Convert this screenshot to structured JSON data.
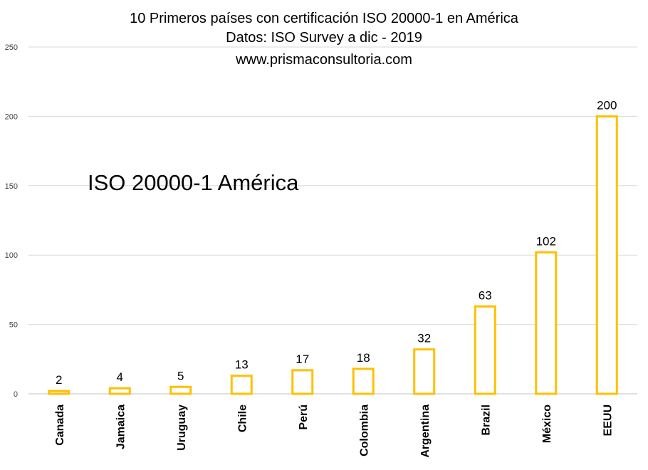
{
  "chart_data": {
    "type": "bar",
    "title_lines": [
      "10 Primeros países con certificación ISO 20000-1 en América",
      "Datos:  ISO Survey a dic - 2019",
      "www.prismaconsultoria.com"
    ],
    "annotation": "ISO 20000-1 América",
    "categories": [
      "Canada",
      "Jamaica",
      "Uruguay",
      "Chile",
      "Perú",
      "Colombia",
      "Argentina",
      "Brazil",
      "México",
      "EEUU"
    ],
    "values": [
      2,
      4,
      5,
      13,
      17,
      18,
      32,
      63,
      102,
      200
    ],
    "ylim": [
      0,
      250
    ],
    "yticks": [
      0,
      50,
      100,
      150,
      200,
      250
    ],
    "grid": true,
    "bar_fill": "#ffffff",
    "bar_color": "#FFC000",
    "gridline_color": "#d9d9d9"
  }
}
